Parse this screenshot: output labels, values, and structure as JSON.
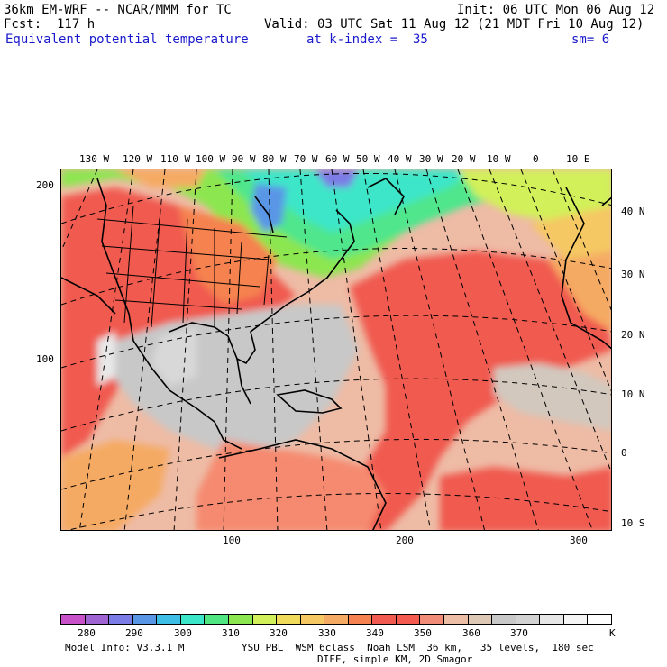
{
  "header": {
    "model": "36km EM-WRF -- NCAR/MMM for TC",
    "init": "Init: 06 UTC Mon 06 Aug 12",
    "fcst": "Fcst:  117 h",
    "valid": "Valid: 03 UTC Sat 11 Aug 12 (21 MDT Fri 10 Aug 12)",
    "field": "Equivalent potential temperature",
    "level": "at k-index =  35",
    "smooth": "sm= 6"
  },
  "map": {
    "top_lon_labels": [
      "130 W",
      "120 W",
      "110 W",
      "100 W",
      "90 W",
      "80 W",
      "70 W",
      "60 W",
      "50 W",
      "40 W",
      "30 W",
      "20 W",
      "10 W",
      "0",
      "10 E"
    ],
    "right_lat_labels": [
      "40 N",
      "30 N",
      "20 N",
      "10 N",
      "0",
      "10 S"
    ],
    "left_grid_labels": [
      "200",
      "100"
    ],
    "bottom_grid_labels": [
      "100",
      "200",
      "300"
    ]
  },
  "colorbar": {
    "colors": [
      "#c850c8",
      "#a064d2",
      "#7c7ce6",
      "#5a96e6",
      "#3cbee6",
      "#3ce6c8",
      "#50e682",
      "#8ce650",
      "#d2f05a",
      "#f0dc5a",
      "#f5c864",
      "#f5aa64",
      "#f58250",
      "#f05a50",
      "#f55a50",
      "#f08c78",
      "#ebbea5",
      "#dcc8b4",
      "#c8c8c8",
      "#d2d2d2",
      "#e6e6e6",
      "#f5f5f5",
      "#ffffff"
    ],
    "tick_labels": [
      "280",
      "290",
      "300",
      "310",
      "320",
      "330",
      "340",
      "350",
      "360",
      "370",
      "K"
    ]
  },
  "footer": {
    "line1_left": "Model Info: V3.3.1 M",
    "line1_right": "YSU PBL  WSM 6class  Noah LSM  36 km,   35 levels,  180 sec",
    "line2": "DIFF, simple KM, 2D Smagor"
  }
}
